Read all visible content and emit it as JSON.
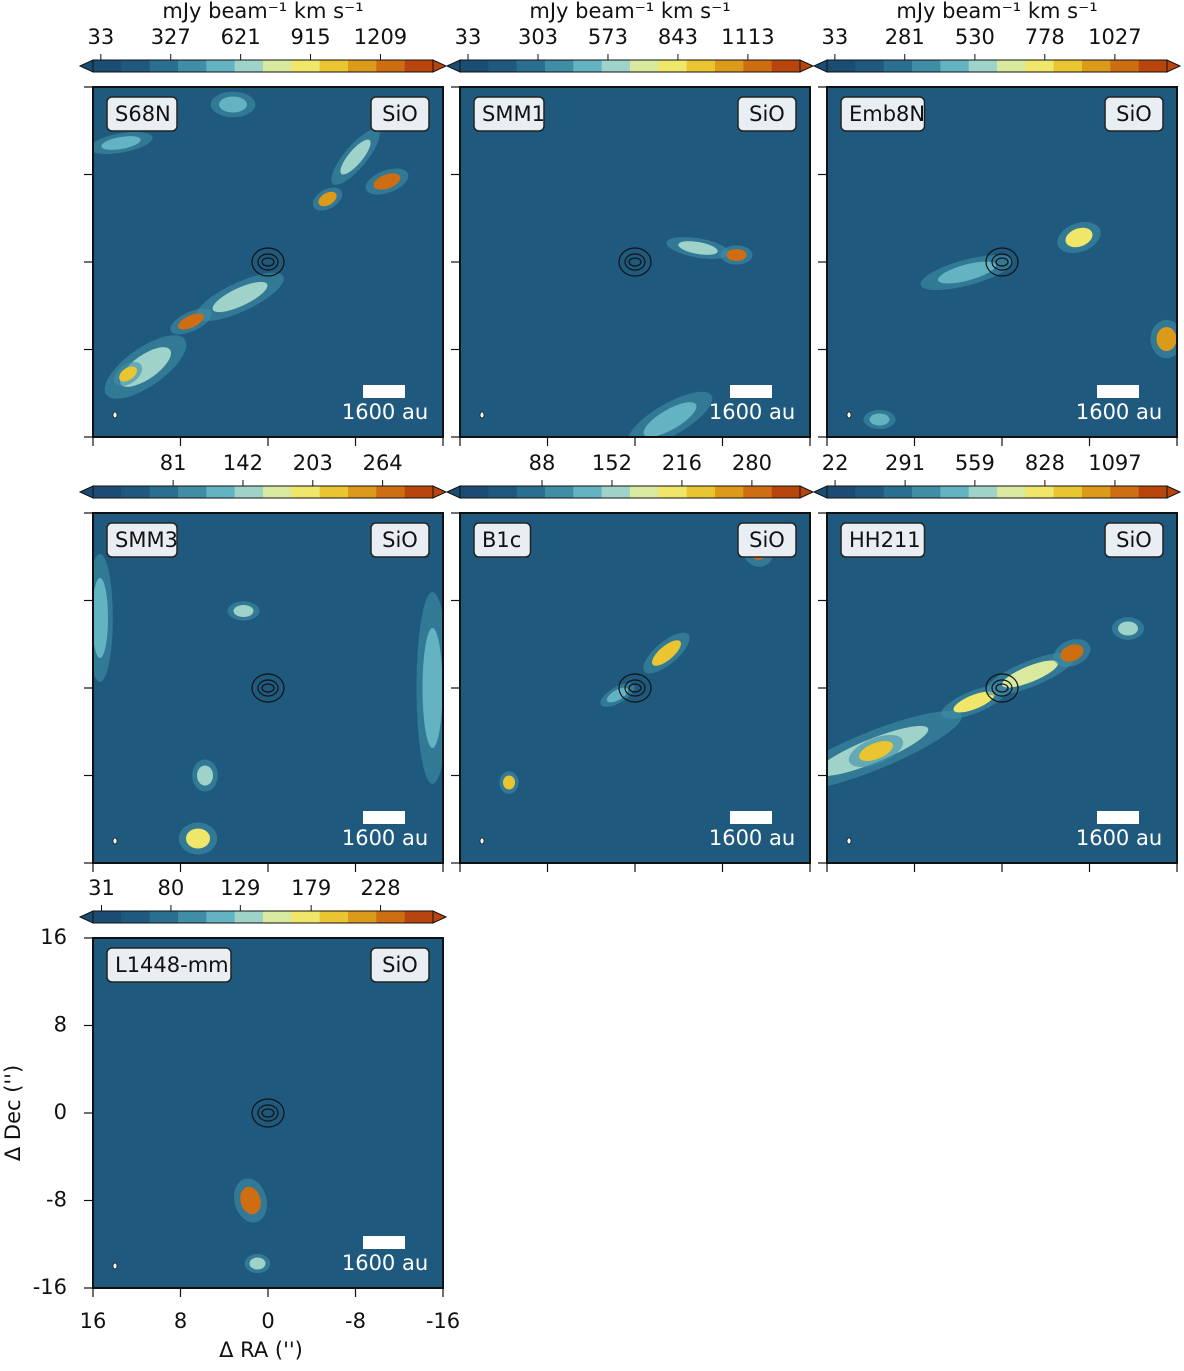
{
  "chart_data": [
    {
      "type": "image",
      "title": "S68N",
      "annotation": "SiO",
      "scalebar_label": "1600 au",
      "colorbar": {
        "label": "mJy beam⁻¹ km s⁻¹",
        "lim": [
          0,
          1430
        ],
        "ticks": [
          33,
          327,
          621,
          915,
          1209
        ]
      },
      "colormap": [
        "#1b4d72",
        "#1f5a7e",
        "#2a6f8f",
        "#3f8ea6",
        "#63b3c2",
        "#9fd2c8",
        "#d9e9a0",
        "#efe66a",
        "#e8c531",
        "#dc9a1b",
        "#cf6d12",
        "#b8450c"
      ],
      "xlim": [
        16,
        -16
      ],
      "ylim": [
        -16,
        16
      ],
      "xticks": [
        16,
        8,
        0,
        -8,
        -16
      ],
      "yticks": [
        16,
        8,
        0,
        -8,
        -16
      ]
    },
    {
      "type": "image",
      "title": "SMM1",
      "annotation": "SiO",
      "scalebar_label": "1600 au",
      "colorbar": {
        "label": "mJy beam⁻¹ km s⁻¹",
        "lim": [
          2,
          1314
        ],
        "ticks": [
          33,
          303,
          573,
          843,
          1113
        ]
      },
      "colormap": [
        "#1b4d72",
        "#1f5a7e",
        "#2a6f8f",
        "#3f8ea6",
        "#63b3c2",
        "#9fd2c8",
        "#d9e9a0",
        "#efe66a",
        "#e8c531",
        "#dc9a1b",
        "#cf6d12",
        "#b8450c"
      ],
      "xlim": [
        16,
        -16
      ],
      "ylim": [
        -16,
        16
      ],
      "xticks": [
        16,
        8,
        0,
        -8,
        -16
      ],
      "yticks": [
        16,
        8,
        0,
        -8,
        -16
      ]
    },
    {
      "type": "image",
      "title": "Emb8N",
      "annotation": "SiO",
      "scalebar_label": "1600 au",
      "colorbar": {
        "label": "mJy beam⁻¹ km s⁻¹",
        "lim": [
          5,
          1212
        ],
        "ticks": [
          33,
          281,
          530,
          778,
          1027
        ]
      },
      "colormap": [
        "#1b4d72",
        "#1f5a7e",
        "#2a6f8f",
        "#3f8ea6",
        "#63b3c2",
        "#9fd2c8",
        "#d9e9a0",
        "#efe66a",
        "#e8c531",
        "#dc9a1b",
        "#cf6d12",
        "#b8450c"
      ],
      "xlim": [
        16,
        -16
      ],
      "ylim": [
        -16,
        16
      ],
      "xticks": [
        16,
        8,
        0,
        -8,
        -16
      ],
      "yticks": [
        16,
        8,
        0,
        -8,
        -16
      ]
    },
    {
      "type": "image",
      "title": "SMM3",
      "annotation": "SiO",
      "scalebar_label": "1600 au",
      "colorbar": {
        "lim": [
          11,
          308
        ],
        "ticks": [
          81,
          142,
          203,
          264
        ]
      },
      "colormap": [
        "#1b4d72",
        "#1f5a7e",
        "#2a6f8f",
        "#3f8ea6",
        "#63b3c2",
        "#9fd2c8",
        "#d9e9a0",
        "#efe66a",
        "#e8c531",
        "#dc9a1b",
        "#cf6d12",
        "#b8450c"
      ],
      "xlim": [
        16,
        -16
      ],
      "ylim": [
        -16,
        16
      ],
      "xticks": [
        16,
        8,
        0,
        -8,
        -16
      ],
      "yticks": [
        16,
        8,
        0,
        -8,
        -16
      ]
    },
    {
      "type": "image",
      "title": "B1c",
      "annotation": "SiO",
      "scalebar_label": "1600 au",
      "colorbar": {
        "lim": [
          13,
          324
        ],
        "ticks": [
          88,
          152,
          216,
          280
        ]
      },
      "colormap": [
        "#1b4d72",
        "#1f5a7e",
        "#2a6f8f",
        "#3f8ea6",
        "#63b3c2",
        "#9fd2c8",
        "#d9e9a0",
        "#efe66a",
        "#e8c531",
        "#dc9a1b",
        "#cf6d12",
        "#b8450c"
      ],
      "xlim": [
        16,
        -16
      ],
      "ylim": [
        -16,
        16
      ],
      "xticks": [
        16,
        8,
        0,
        -8,
        -16
      ],
      "yticks": [
        16,
        8,
        0,
        -8,
        -16
      ]
    },
    {
      "type": "image",
      "title": "HH211",
      "annotation": "SiO",
      "scalebar_label": "1600 au",
      "colorbar": {
        "lim": [
          -9,
          1297
        ],
        "ticks": [
          22,
          291,
          559,
          828,
          1097
        ]
      },
      "colormap": [
        "#1b4d72",
        "#1f5a7e",
        "#2a6f8f",
        "#3f8ea6",
        "#63b3c2",
        "#9fd2c8",
        "#d9e9a0",
        "#efe66a",
        "#e8c531",
        "#dc9a1b",
        "#cf6d12",
        "#b8450c"
      ],
      "xlim": [
        16,
        -16
      ],
      "ylim": [
        -16,
        16
      ],
      "xticks": [
        16,
        8,
        0,
        -8,
        -16
      ],
      "yticks": [
        16,
        8,
        0,
        -8,
        -16
      ]
    },
    {
      "type": "image",
      "title": "L1448-mm",
      "annotation": "SiO",
      "scalebar_label": "1600 au",
      "colorbar": {
        "lim": [
          25,
          265
        ],
        "ticks": [
          31,
          80,
          129,
          179,
          228
        ]
      },
      "colormap": [
        "#1b4d72",
        "#1f5a7e",
        "#2a6f8f",
        "#3f8ea6",
        "#63b3c2",
        "#9fd2c8",
        "#d9e9a0",
        "#efe66a",
        "#e8c531",
        "#dc9a1b",
        "#cf6d12",
        "#b8450c"
      ],
      "xlim": [
        16,
        -16
      ],
      "ylim": [
        -16,
        16
      ],
      "xticks": [
        16,
        8,
        0,
        -8,
        -16
      ],
      "yticks": [
        16,
        8,
        0,
        -8,
        -16
      ],
      "xlabel": "Δ RA ('')",
      "ylabel": "Δ Dec ('')"
    }
  ]
}
